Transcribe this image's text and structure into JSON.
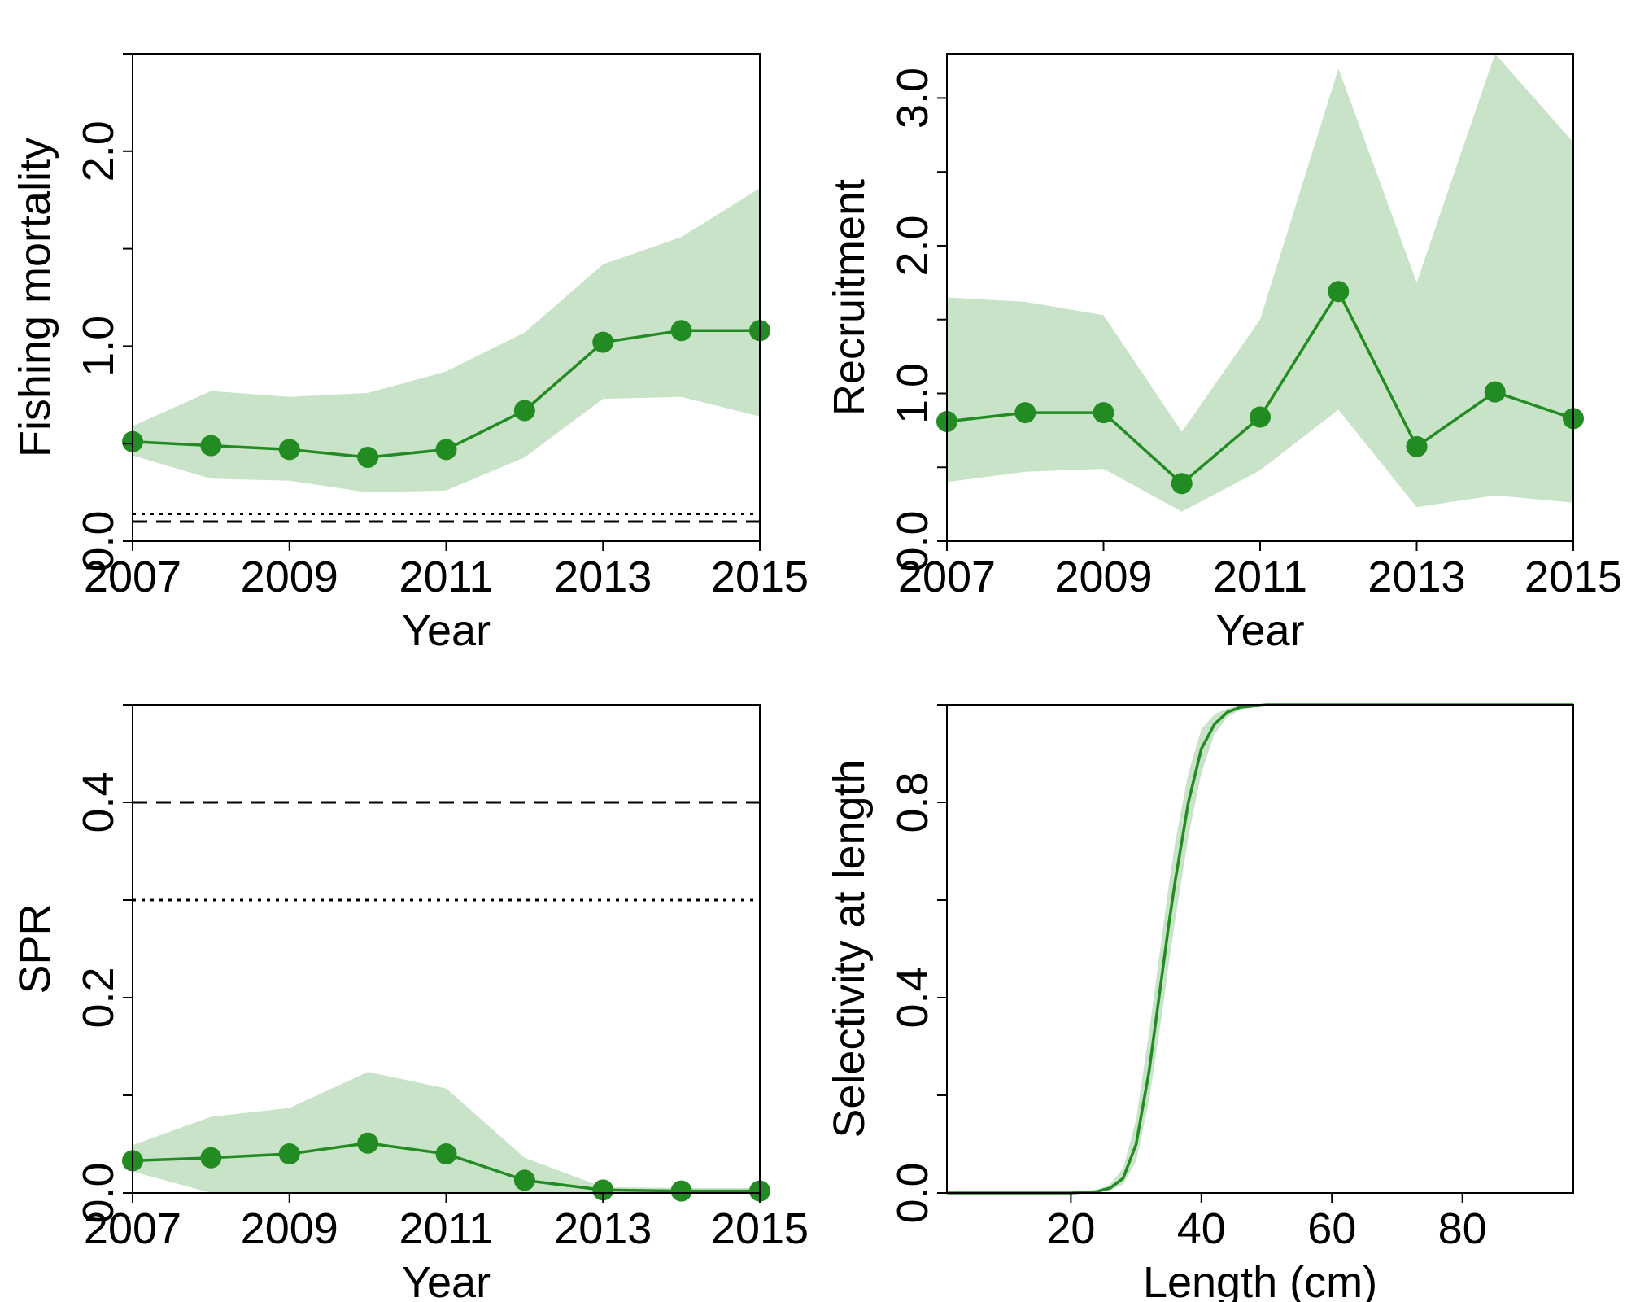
{
  "colors": {
    "line": "#228B22",
    "band": "#C8E3C8",
    "axis": "#000000",
    "reference": "#000000"
  },
  "chart_data": [
    {
      "id": "fishing-mortality",
      "type": "line",
      "xlabel": "Year",
      "ylabel": "Fishing mortality",
      "xlim": [
        2007,
        2015
      ],
      "ylim": [
        0,
        2.5
      ],
      "xticks": [
        2007,
        2009,
        2011,
        2013,
        2015
      ],
      "xtick_labels": [
        "2007",
        "2009",
        "2011",
        "2013",
        "2015"
      ],
      "yticks": [
        0,
        0.5,
        1.0,
        1.5,
        2.0,
        2.5
      ],
      "ytick_labels": [
        "0.0",
        "",
        "1.0",
        "",
        "2.0",
        ""
      ],
      "x": [
        2007,
        2008,
        2009,
        2010,
        2011,
        2012,
        2013,
        2014,
        2015
      ],
      "series": [
        {
          "values": [
            0.51,
            0.49,
            0.47,
            0.43,
            0.47,
            0.67,
            1.02,
            1.08,
            1.08
          ],
          "markers": true
        }
      ],
      "band": {
        "lower": [
          0.44,
          0.32,
          0.31,
          0.25,
          0.26,
          0.43,
          0.73,
          0.74,
          0.64
        ],
        "upper": [
          0.59,
          0.77,
          0.74,
          0.76,
          0.87,
          1.07,
          1.42,
          1.56,
          1.81
        ]
      },
      "reference_lines": [
        {
          "y": 0.14,
          "style": "dotted"
        },
        {
          "y": 0.1,
          "style": "dashed"
        }
      ]
    },
    {
      "id": "recruitment",
      "type": "line",
      "xlabel": "Year",
      "ylabel": "Recruitment",
      "xlim": [
        2007,
        2015
      ],
      "ylim": [
        0,
        3.3
      ],
      "xticks": [
        2007,
        2009,
        2011,
        2013,
        2015
      ],
      "xtick_labels": [
        "2007",
        "2009",
        "2011",
        "2013",
        "2015"
      ],
      "yticks": [
        0,
        0.5,
        1.0,
        1.5,
        2.0,
        2.5,
        3.0
      ],
      "ytick_labels": [
        "0.0",
        "",
        "1.0",
        "",
        "2.0",
        "",
        "3.0"
      ],
      "x": [
        2007,
        2008,
        2009,
        2010,
        2011,
        2012,
        2013,
        2014,
        2015
      ],
      "series": [
        {
          "values": [
            0.81,
            0.87,
            0.87,
            0.39,
            0.84,
            1.69,
            0.64,
            1.01,
            0.83
          ],
          "markers": true
        }
      ],
      "band": {
        "lower": [
          0.4,
          0.47,
          0.49,
          0.2,
          0.48,
          0.89,
          0.23,
          0.31,
          0.26
        ],
        "upper": [
          1.65,
          1.62,
          1.53,
          0.74,
          1.5,
          3.2,
          1.75,
          3.3,
          2.7
        ]
      },
      "reference_lines": []
    },
    {
      "id": "spr",
      "type": "line",
      "xlabel": "Year",
      "ylabel": "SPR",
      "xlim": [
        2007,
        2015
      ],
      "ylim": [
        0,
        0.5
      ],
      "xticks": [
        2007,
        2009,
        2011,
        2013,
        2015
      ],
      "xtick_labels": [
        "2007",
        "2009",
        "2011",
        "2013",
        "2015"
      ],
      "yticks": [
        0,
        0.1,
        0.2,
        0.3,
        0.4,
        0.5
      ],
      "ytick_labels": [
        "0.0",
        "",
        "0.2",
        "",
        "0.4",
        ""
      ],
      "x": [
        2007,
        2008,
        2009,
        2010,
        2011,
        2012,
        2013,
        2014,
        2015
      ],
      "series": [
        {
          "values": [
            0.033,
            0.036,
            0.04,
            0.051,
            0.04,
            0.013,
            0.003,
            0.002,
            0.002
          ],
          "markers": true
        }
      ],
      "band": {
        "lower": [
          0.022,
          0.0,
          0.0,
          0.0,
          0.0,
          0.0,
          0.0,
          0.0,
          0.0
        ],
        "upper": [
          0.049,
          0.078,
          0.087,
          0.124,
          0.107,
          0.036,
          0.006,
          0.005,
          0.005
        ]
      },
      "reference_lines": [
        {
          "y": 0.4,
          "style": "dashed"
        },
        {
          "y": 0.3,
          "style": "dotted"
        }
      ]
    },
    {
      "id": "selectivity",
      "type": "line",
      "xlabel": "Length (cm)",
      "ylabel": "Selectivity at length",
      "xlim": [
        1,
        97
      ],
      "ylim": [
        0,
        1.0
      ],
      "xticks": [
        20,
        40,
        60,
        80
      ],
      "xtick_labels": [
        "20",
        "40",
        "60",
        "80"
      ],
      "yticks": [
        0,
        0.2,
        0.4,
        0.6,
        0.8,
        1.0
      ],
      "ytick_labels": [
        "0.0",
        "",
        "0.4",
        "",
        "0.8",
        ""
      ],
      "x": [
        1,
        20,
        24,
        26,
        28,
        30,
        32,
        34,
        35,
        36,
        38,
        40,
        42,
        44,
        46,
        50,
        60,
        97
      ],
      "series": [
        {
          "values": [
            0,
            0,
            0.003,
            0.01,
            0.03,
            0.1,
            0.25,
            0.45,
            0.55,
            0.64,
            0.8,
            0.91,
            0.96,
            0.985,
            0.995,
            1.0,
            1.0,
            1.0
          ],
          "markers": false
        }
      ],
      "band": {
        "lower": [
          0,
          0,
          0.001,
          0.005,
          0.018,
          0.065,
          0.19,
          0.37,
          0.47,
          0.56,
          0.73,
          0.86,
          0.94,
          0.975,
          0.99,
          1.0,
          1.0,
          1.0
        ],
        "upper": [
          0,
          0,
          0.006,
          0.018,
          0.05,
          0.15,
          0.33,
          0.53,
          0.63,
          0.72,
          0.86,
          0.95,
          0.98,
          0.993,
          0.998,
          1.0,
          1.0,
          1.0
        ]
      },
      "reference_lines": []
    }
  ]
}
